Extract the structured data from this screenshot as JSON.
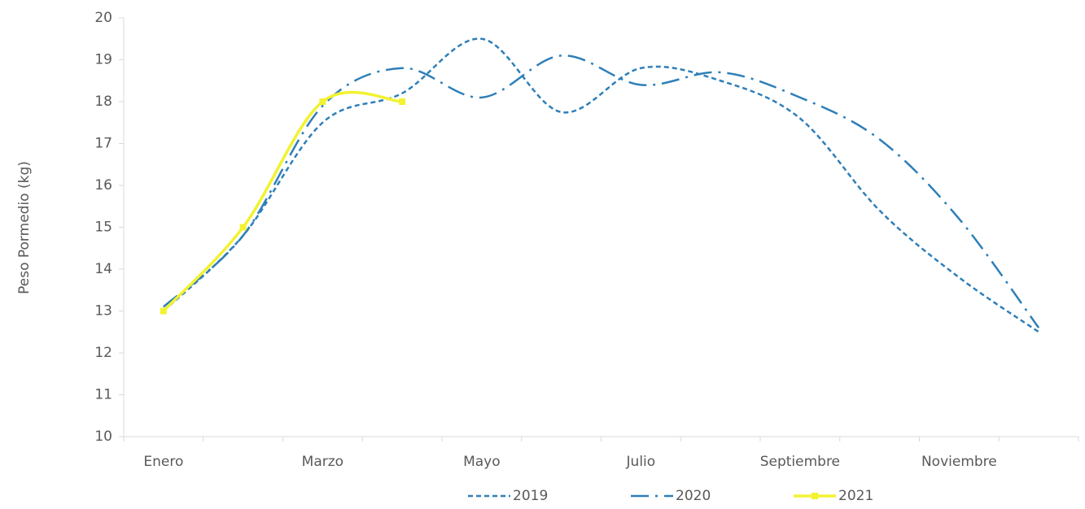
{
  "chart_data": {
    "type": "line",
    "y_label": "Peso Pormedio (kg)",
    "categories": [
      "Enero",
      null,
      "Marzo",
      null,
      "Mayo",
      null,
      "Julio",
      null,
      "Septiembre",
      null,
      "Noviembre",
      null
    ],
    "series": [
      {
        "name": "2019",
        "color": "#2e7fb8",
        "line_style": "dash",
        "marker": false,
        "values": [
          13.0,
          14.8,
          17.5,
          18.2,
          19.5,
          17.75,
          18.8,
          18.5,
          17.6,
          15.4,
          13.8,
          12.5
        ]
      },
      {
        "name": "2020",
        "color": "#2e7fb8",
        "line_style": "dashdot",
        "marker": false,
        "values": [
          13.1,
          14.8,
          17.9,
          18.8,
          18.1,
          19.1,
          18.4,
          18.7,
          18.1,
          17.1,
          15.2,
          12.6
        ]
      },
      {
        "name": "2021",
        "color": "#f2f230",
        "line_style": "solid",
        "marker": true,
        "values": [
          13.0,
          15.0,
          18.0,
          18.0,
          null,
          null,
          null,
          null,
          null,
          null,
          null,
          null
        ]
      }
    ],
    "ylim": [
      10,
      20
    ],
    "yticks": [
      10,
      11,
      12,
      13,
      14,
      15,
      16,
      17,
      18,
      19,
      20
    ],
    "grid": false,
    "legend": "bottom"
  }
}
